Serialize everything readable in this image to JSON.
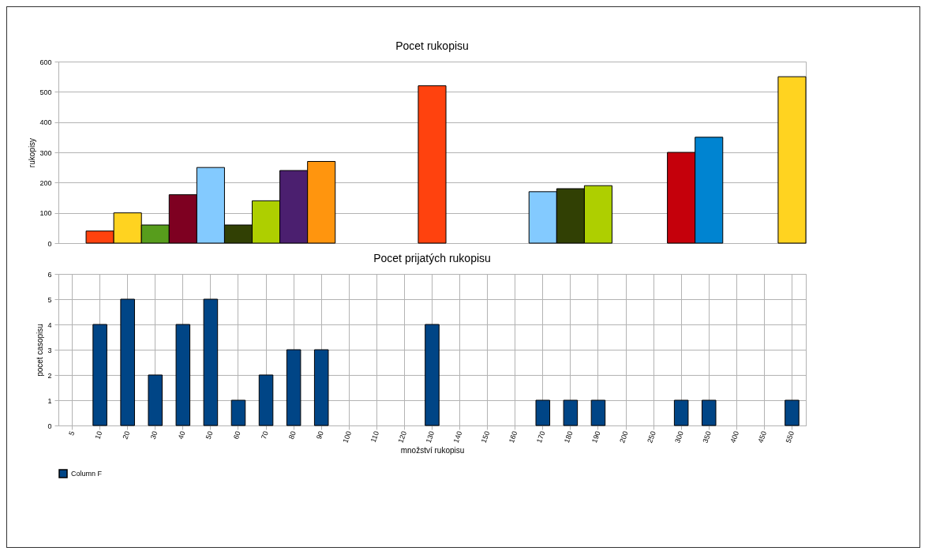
{
  "chart_data": [
    {
      "type": "bar",
      "title": "Pocet rukopisu",
      "ylabel": "rukopisy",
      "categories": [
        null,
        null,
        null,
        null,
        null,
        null,
        null,
        null,
        null,
        null,
        null,
        null,
        null,
        null,
        null,
        null,
        null,
        null,
        null,
        null,
        null,
        null,
        null,
        null,
        null,
        null,
        null
      ],
      "values": [
        null,
        40,
        100,
        60,
        160,
        250,
        60,
        140,
        240,
        270,
        null,
        null,
        null,
        520,
        null,
        null,
        null,
        170,
        180,
        190,
        null,
        null,
        300,
        350,
        null,
        null,
        550
      ],
      "colors": [
        null,
        "#ff420e",
        "#ffd320",
        "#579d1c",
        "#7e0021",
        "#83caff",
        "#314004",
        "#aecf00",
        "#4b1f6f",
        "#ff950e",
        null,
        null,
        null,
        "#ff420e",
        null,
        null,
        null,
        "#83caff",
        "#314004",
        "#aecf00",
        null,
        null,
        "#c5000b",
        "#0084d1",
        null,
        null,
        "#ffd320"
      ],
      "ylim": [
        0,
        600
      ],
      "yticks": [
        0,
        100,
        200,
        300,
        400,
        500,
        600
      ],
      "grid": "y",
      "tick_labels": "y"
    },
    {
      "type": "bar",
      "title": "Pocet prijatých rukopisu",
      "xlabel": "množství rukopisu",
      "ylabel": "pocet casopisu",
      "categories": [
        "5",
        "10",
        "20",
        "30",
        "40",
        "50",
        "60",
        "70",
        "80",
        "90",
        "100",
        "110",
        "120",
        "130",
        "140",
        "150",
        "160",
        "170",
        "180",
        "190",
        "200",
        "250",
        "300",
        "350",
        "400",
        "450",
        "550"
      ],
      "series": [
        {
          "name": "Column F",
          "color": "#004586",
          "values": [
            null,
            4,
            5,
            2,
            4,
            5,
            1,
            2,
            3,
            3,
            null,
            null,
            null,
            4,
            null,
            null,
            null,
            1,
            1,
            1,
            null,
            null,
            1,
            1,
            null,
            null,
            1
          ]
        }
      ],
      "ylim": [
        0,
        6
      ],
      "yticks": [
        0,
        1,
        2,
        3,
        4,
        5,
        6
      ],
      "grid": true,
      "legend": "bottom"
    }
  ]
}
